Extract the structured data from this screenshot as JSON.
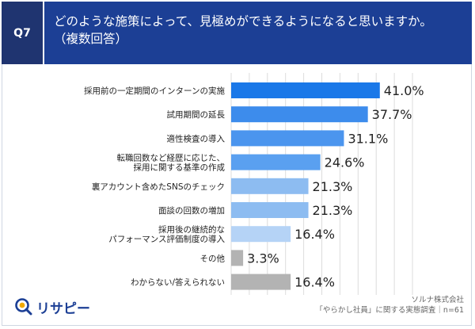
{
  "header": {
    "question_no": "Q7",
    "title": "どのような施策によって、見極めができるようになると思いますか。\n（複数回答）"
  },
  "chart_data": {
    "type": "bar",
    "orientation": "horizontal",
    "categories": [
      "採用前の一定期間のインターンの実施",
      "試用期間の延長",
      "適性検査の導入",
      "転職回数など経歴に応じた、\n採用に関する基準の作成",
      "裏アカウント含めたSNSのチェック",
      "面談の回数の増加",
      "採用後の継続的な\nパフォーマンス評価制度の導入",
      "その他",
      "わからない/答えられない"
    ],
    "values": [
      41.0,
      37.7,
      31.1,
      24.6,
      21.3,
      21.3,
      16.4,
      3.3,
      16.4
    ],
    "value_labels": [
      "41.0%",
      "37.7%",
      "31.1%",
      "24.6%",
      "21.3%",
      "21.3%",
      "16.4%",
      "3.3%",
      "16.4%"
    ],
    "colors": [
      "#1a78e8",
      "#3d8cec",
      "#4b95ee",
      "#5aa0f0",
      "#8dbcf1",
      "#8dbcf1",
      "#b5d3f6",
      "#b3b3b3",
      "#b3b3b3"
    ],
    "xlim": [
      0,
      50
    ],
    "grid": true
  },
  "logo": {
    "text": "リサピー"
  },
  "source": {
    "company": "ソルナ株式会社",
    "survey": "「やらかし社員」に関する実態調査｜n=61"
  }
}
